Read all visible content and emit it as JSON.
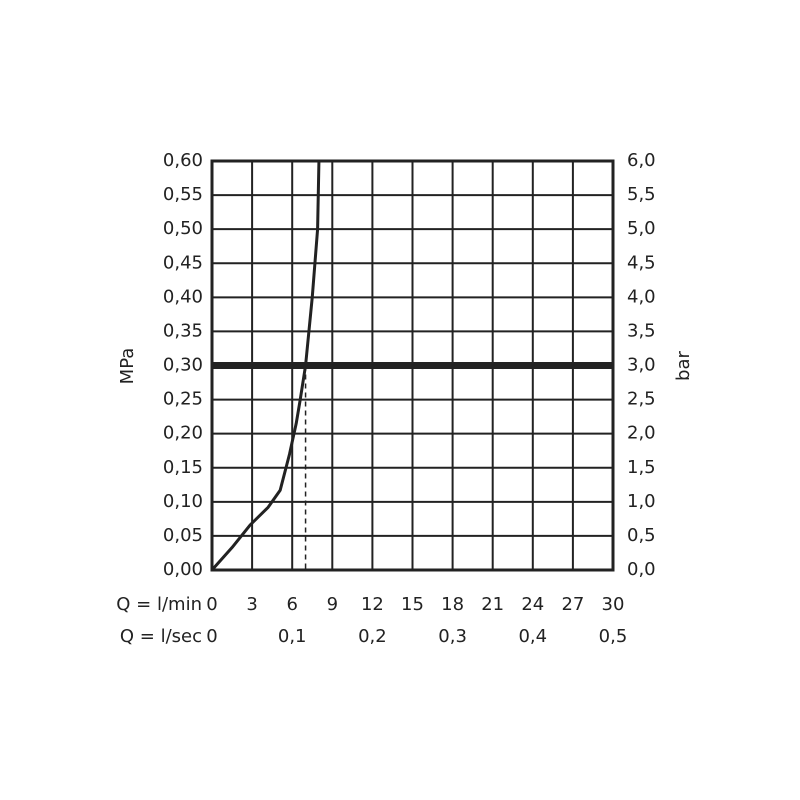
{
  "chart_data": {
    "type": "line",
    "ylabel": "MPa",
    "y2label": "bar",
    "xlabel": "Q = l/min",
    "x2label": "Q = l/sec",
    "xlim": [
      0,
      30
    ],
    "xticks": [
      0,
      3,
      6,
      9,
      12,
      15,
      18,
      21,
      24,
      27,
      30
    ],
    "x2lim": [
      0,
      0.5
    ],
    "x2ticks": [
      0,
      {
        "value": 0.1,
        "label": "0,1"
      },
      {
        "value": 0.2,
        "label": "0,2"
      },
      {
        "value": 0.3,
        "label": "0,3"
      },
      {
        "value": 0.4,
        "label": "0,4"
      },
      {
        "value": 0.5,
        "label": "0,5"
      }
    ],
    "ylim": [
      0,
      0.6
    ],
    "yticks": [
      {
        "value": 0,
        "label": "0,00"
      },
      {
        "value": 0.05,
        "label": "0,05"
      },
      {
        "value": 0.1,
        "label": "0,10"
      },
      {
        "value": 0.15,
        "label": "0,15"
      },
      {
        "value": 0.2,
        "label": "0,20"
      },
      {
        "value": 0.25,
        "label": "0,25"
      },
      {
        "value": 0.3,
        "label": "0,30"
      },
      {
        "value": 0.35,
        "label": "0,35"
      },
      {
        "value": 0.4,
        "label": "0,40"
      },
      {
        "value": 0.45,
        "label": "0,45"
      },
      {
        "value": 0.5,
        "label": "0,50"
      },
      {
        "value": 0.55,
        "label": "0,55"
      },
      {
        "value": 0.6,
        "label": "0,60"
      }
    ],
    "y2lim": [
      0,
      6
    ],
    "y2ticks": [
      {
        "value": 0,
        "label": "0,0"
      },
      {
        "value": 0.5,
        "label": "0,5"
      },
      {
        "value": 1,
        "label": "1,0"
      },
      {
        "value": 1.5,
        "label": "1,5"
      },
      {
        "value": 2,
        "label": "2,0"
      },
      {
        "value": 2.5,
        "label": "2,5"
      },
      {
        "value": 3,
        "label": "3,0"
      },
      {
        "value": 3.5,
        "label": "3,5"
      },
      {
        "value": 4,
        "label": "4,0"
      },
      {
        "value": 4.5,
        "label": "4,5"
      },
      {
        "value": 5,
        "label": "5,0"
      },
      {
        "value": 5.5,
        "label": "5,5"
      },
      {
        "value": 6,
        "label": "6,0"
      }
    ],
    "grid": true,
    "hline": 0.3,
    "operating_point": {
      "x": 7,
      "y": 0.3
    },
    "series": [
      {
        "color": "#222222",
        "x": [
          0,
          1.5,
          2.85,
          4.2,
          5.1,
          5.8,
          6.3,
          6.6,
          7.0,
          7.5,
          7.9,
          8.0
        ],
        "values": [
          0,
          0.033,
          0.066,
          0.092,
          0.117,
          0.17,
          0.215,
          0.25,
          0.3,
          0.4,
          0.5,
          0.6
        ]
      }
    ]
  }
}
